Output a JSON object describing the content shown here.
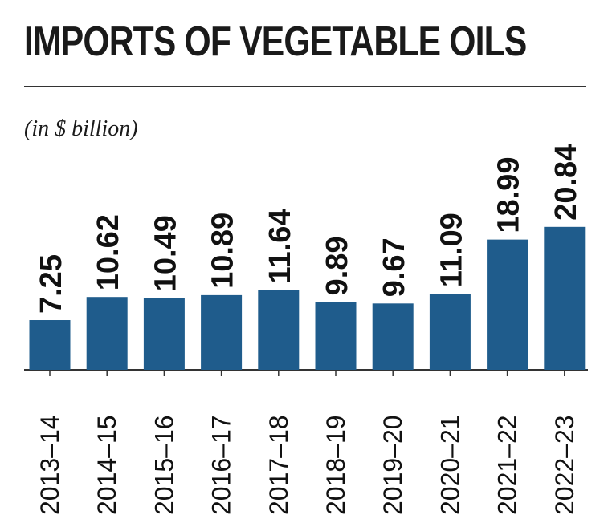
{
  "chart_data": {
    "type": "bar",
    "title": "IMPORTS OF VEGETABLE OILS",
    "subtitle": "(in $ billion)",
    "xlabel": "",
    "ylabel": "",
    "ylim": [
      0,
      24
    ],
    "grid": false,
    "bar_color": "#1f5c8c",
    "categories": [
      "2013-14",
      "2014-15",
      "2015-16",
      "2016-17",
      "2017-18",
      "2018-19",
      "2019-20",
      "2020-21",
      "2021-22",
      "2022-23"
    ],
    "values": [
      7.25,
      10.62,
      10.49,
      10.89,
      11.64,
      9.89,
      9.67,
      11.09,
      18.99,
      20.84
    ],
    "value_labels": [
      "7.25",
      "10.62",
      "10.49",
      "10.89",
      "11.64",
      "9.89",
      "9.67",
      "11.09",
      "18.99",
      "20.84"
    ]
  }
}
